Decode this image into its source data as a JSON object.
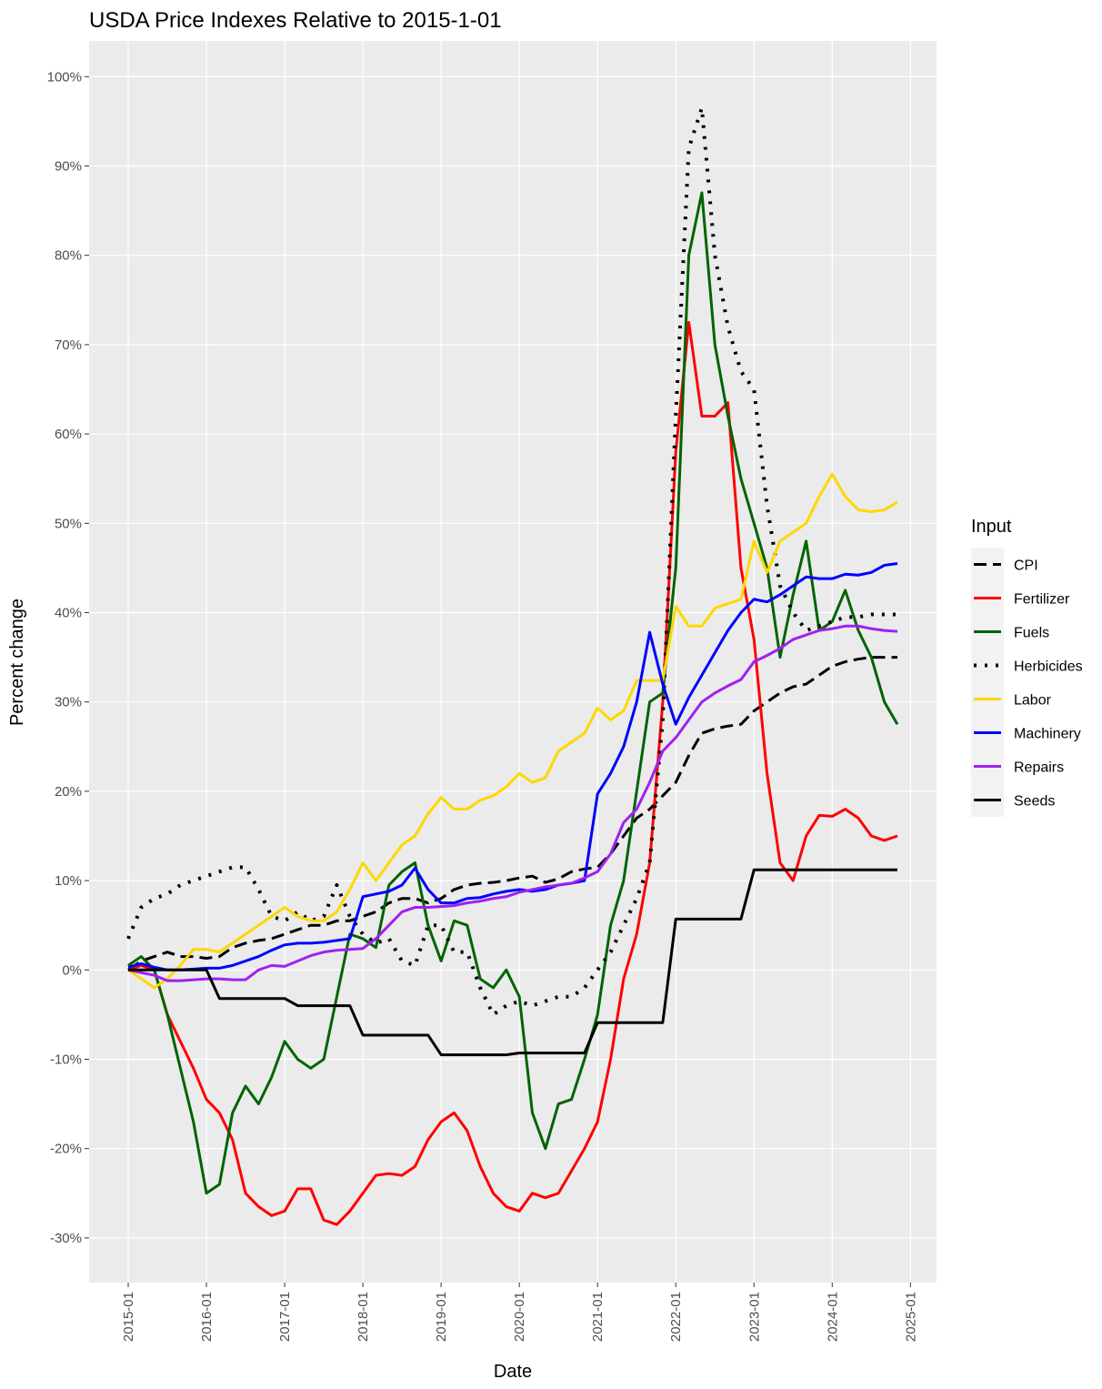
{
  "chart_data": {
    "type": "line",
    "title": "USDA Price Indexes Relative to  2015-1-01",
    "x_label": "Date",
    "y_label": "Percent change",
    "legend_title": "Input",
    "grid": true,
    "legend_position": "right",
    "x": [
      "2015-01",
      "2015-03",
      "2015-05",
      "2015-07",
      "2015-09",
      "2015-11",
      "2016-01",
      "2016-03",
      "2016-05",
      "2016-07",
      "2016-09",
      "2016-11",
      "2017-01",
      "2017-03",
      "2017-05",
      "2017-07",
      "2017-09",
      "2017-11",
      "2018-01",
      "2018-03",
      "2018-05",
      "2018-07",
      "2018-09",
      "2018-11",
      "2019-01",
      "2019-03",
      "2019-05",
      "2019-07",
      "2019-09",
      "2019-11",
      "2020-01",
      "2020-03",
      "2020-05",
      "2020-07",
      "2020-09",
      "2020-11",
      "2021-01",
      "2021-03",
      "2021-05",
      "2021-07",
      "2021-09",
      "2021-11",
      "2022-01",
      "2022-03",
      "2022-05",
      "2022-07",
      "2022-09",
      "2022-11",
      "2023-01",
      "2023-03",
      "2023-05",
      "2023-07",
      "2023-09",
      "2023-11",
      "2024-01",
      "2024-03",
      "2024-05",
      "2024-07",
      "2024-09",
      "2024-11"
    ],
    "xlim": [
      "2014-07",
      "2025-05"
    ],
    "xticks": [
      "2015-01",
      "2016-01",
      "2017-01",
      "2018-01",
      "2019-01",
      "2020-01",
      "2021-01",
      "2022-01",
      "2023-01",
      "2024-01",
      "2025-01"
    ],
    "ylim": [
      -35,
      104
    ],
    "yticks": [
      {
        "value": -30,
        "label": "-30%"
      },
      {
        "value": -20,
        "label": "-20%"
      },
      {
        "value": -10,
        "label": "-10%"
      },
      {
        "value": 0,
        "label": "0%"
      },
      {
        "value": 10,
        "label": "10%"
      },
      {
        "value": 20,
        "label": "20%"
      },
      {
        "value": 30,
        "label": "30%"
      },
      {
        "value": 40,
        "label": "40%"
      },
      {
        "value": 50,
        "label": "50%"
      },
      {
        "value": 60,
        "label": "60%"
      },
      {
        "value": 70,
        "label": "70%"
      },
      {
        "value": 80,
        "label": "80%"
      },
      {
        "value": 90,
        "label": "90%"
      },
      {
        "value": 100,
        "label": "100%"
      }
    ],
    "series": [
      {
        "name": "CPI",
        "color": "#000000",
        "linetype": "dashed",
        "values": [
          0,
          1,
          1.5,
          2,
          1.5,
          1.5,
          1.3,
          1.5,
          2.5,
          3,
          3.3,
          3.5,
          4,
          4.5,
          5,
          5,
          5.5,
          5.5,
          6,
          6.5,
          7.5,
          8,
          8,
          7.5,
          8,
          9,
          9.5,
          9.7,
          9.8,
          10,
          10.3,
          10.5,
          9.8,
          10.2,
          11,
          11.3,
          11.5,
          13,
          15,
          17,
          18,
          19.5,
          21,
          24,
          26.5,
          27,
          27.3,
          27.5,
          29,
          30,
          31,
          31.7,
          32,
          33,
          34,
          34.5,
          34.8,
          35,
          35,
          35
        ]
      },
      {
        "name": "Fertilizer",
        "color": "#ff0000",
        "linetype": "solid",
        "values": [
          0,
          0.5,
          0,
          -5,
          -8,
          -11,
          -14.5,
          -16,
          -19,
          -25,
          -26.5,
          -27.5,
          -27,
          -24.5,
          -24.5,
          -28,
          -28.5,
          -27,
          -25,
          -23,
          -22.8,
          -23,
          -22,
          -19,
          -17,
          -16,
          -18,
          -22,
          -25,
          -26.5,
          -27,
          -25,
          -25.5,
          -25,
          -22.5,
          -20,
          -17,
          -10,
          -1,
          4,
          12,
          30,
          58,
          72.5,
          62,
          62,
          63.5,
          45,
          37,
          22,
          12,
          10,
          15,
          17.3,
          17.2,
          18,
          17,
          15,
          14.5,
          15
        ]
      },
      {
        "name": "Fuels",
        "color": "#006400",
        "linetype": "solid",
        "values": [
          0.5,
          1.5,
          0,
          -5,
          -11,
          -17,
          -25,
          -24,
          -16,
          -13,
          -15,
          -12,
          -8,
          -10,
          -11,
          -10,
          -3,
          4,
          3.5,
          2.5,
          9.5,
          11,
          12,
          5,
          1,
          5.5,
          5,
          -1,
          -2,
          0,
          -3,
          -16,
          -20,
          -15,
          -14.5,
          -10,
          -5,
          5,
          10,
          20,
          30,
          31,
          45,
          80,
          87,
          70,
          62,
          55,
          50,
          45,
          35,
          42,
          48,
          38,
          39,
          42.5,
          38,
          35,
          30,
          27.5
        ]
      },
      {
        "name": "Herbicides",
        "color": "#000000",
        "linetype": "dotted",
        "values": [
          3.5,
          7,
          8,
          8.5,
          9.5,
          10,
          10.5,
          11,
          11.5,
          11.5,
          9,
          6,
          5.5,
          6.5,
          5.5,
          6,
          9.5,
          6,
          4,
          3,
          3.5,
          1,
          0.5,
          5,
          5,
          2,
          2,
          -2,
          -5,
          -4,
          -3.5,
          -4,
          -3.5,
          -3,
          -3,
          -2,
          0,
          2,
          5,
          8,
          12,
          28,
          62,
          92,
          96.5,
          80,
          72,
          67,
          65,
          52,
          43,
          40,
          38,
          38.5,
          39,
          39.5,
          39.5,
          39.8,
          39.8,
          39.8
        ]
      },
      {
        "name": "Labor",
        "color": "#ffd700",
        "linetype": "solid",
        "values": [
          0,
          -1,
          -2,
          -1,
          0.5,
          2.3,
          2.3,
          2,
          3,
          4,
          5,
          6,
          7,
          6,
          5.5,
          5.5,
          6.5,
          9,
          12,
          10,
          12,
          14,
          15,
          17.5,
          19.3,
          18,
          18,
          19,
          19.5,
          20.5,
          22,
          21,
          21.5,
          24.5,
          25.5,
          26.5,
          29.3,
          28,
          29,
          32.4,
          32.4,
          32.4,
          40.7,
          38.5,
          38.5,
          40.5,
          41,
          41.5,
          48,
          44.5,
          48,
          49,
          50,
          53,
          55.5,
          53,
          51.5,
          51.3,
          51.5,
          52.4
        ]
      },
      {
        "name": "Machinery",
        "color": "#0000ff",
        "linetype": "solid",
        "values": [
          0.3,
          0.7,
          0.3,
          0,
          0,
          0.1,
          0.2,
          0.2,
          0.5,
          1,
          1.5,
          2.2,
          2.8,
          3,
          3,
          3.1,
          3.3,
          3.5,
          8.2,
          8.5,
          8.8,
          9.5,
          11.4,
          9,
          7.5,
          7.5,
          8,
          8.1,
          8.5,
          8.8,
          9,
          8.8,
          9,
          9.5,
          9.7,
          10,
          19.7,
          22,
          25,
          30,
          37.8,
          32,
          27.5,
          30.5,
          33,
          35.5,
          38,
          40,
          41.5,
          41.2,
          42,
          43,
          44,
          43.8,
          43.8,
          44.3,
          44.2,
          44.5,
          45.3,
          45.5
        ]
      },
      {
        "name": "Repairs",
        "color": "#a020f0",
        "linetype": "solid",
        "values": [
          0,
          -0.3,
          -0.6,
          -1.2,
          -1.2,
          -1.1,
          -1,
          -1,
          -1.1,
          -1.1,
          0,
          0.5,
          0.4,
          1,
          1.6,
          2,
          2.2,
          2.3,
          2.4,
          3.5,
          5,
          6.5,
          7,
          7,
          7.1,
          7.2,
          7.5,
          7.7,
          8,
          8.2,
          8.7,
          9,
          9.3,
          9.5,
          9.7,
          10.3,
          11,
          13,
          16.5,
          18,
          21,
          24.5,
          26,
          28,
          30,
          31,
          31.8,
          32.5,
          34.5,
          35.2,
          36,
          37,
          37.5,
          38,
          38.2,
          38.5,
          38.5,
          38.2,
          38,
          37.9
        ]
      },
      {
        "name": "Seeds",
        "color": "#000000",
        "linetype": "solid",
        "values": [
          0,
          0,
          0,
          0,
          0,
          0,
          0,
          -3.2,
          -3.2,
          -3.2,
          -3.2,
          -3.2,
          -3.2,
          -4,
          -4,
          -4,
          -4,
          -4,
          -7.3,
          -7.3,
          -7.3,
          -7.3,
          -7.3,
          -7.3,
          -9.5,
          -9.5,
          -9.5,
          -9.5,
          -9.5,
          -9.5,
          -9.3,
          -9.3,
          -9.3,
          -9.3,
          -9.3,
          -9.3,
          -5.9,
          -5.9,
          -5.9,
          -5.9,
          -5.9,
          -5.9,
          5.7,
          5.7,
          5.7,
          5.7,
          5.7,
          5.7,
          11.2,
          11.2,
          11.2,
          11.2,
          11.2,
          11.2,
          11.2,
          11.2,
          11.2,
          11.2,
          11.2,
          11.2
        ]
      }
    ]
  }
}
